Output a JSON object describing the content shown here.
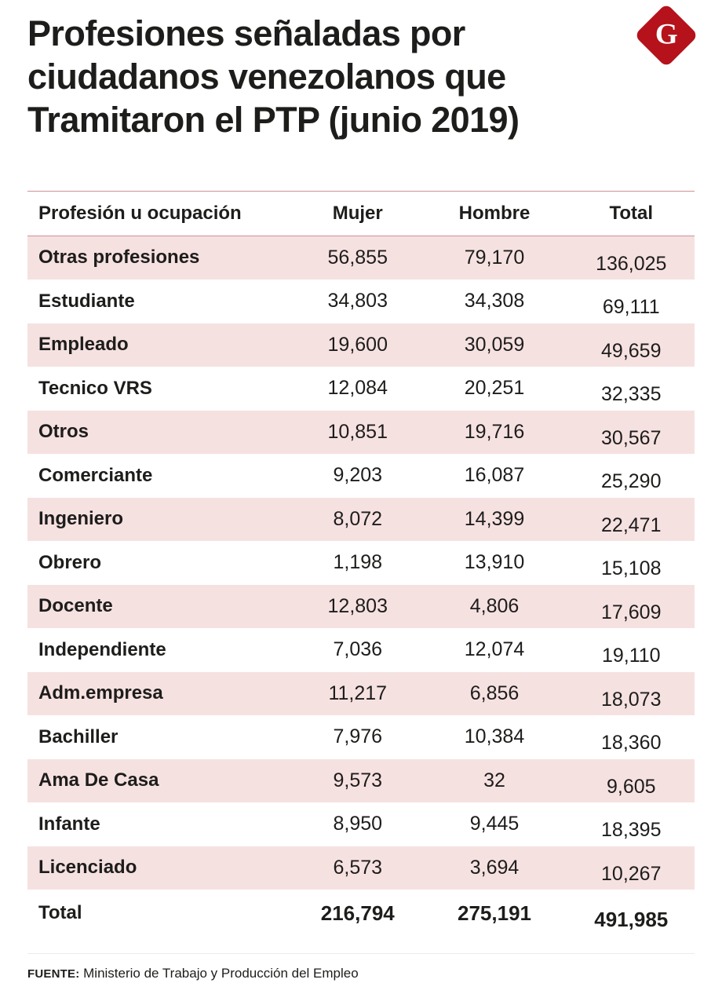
{
  "page": {
    "title_lines": [
      "Profesiones señaladas por",
      "ciudadanos venezolanos que",
      "Tramitaron el PTP (junio 2019)"
    ],
    "logo_letter": "G",
    "footer_label": "FUENTE:",
    "footer_text": " Ministerio de Trabajo y Producción del Empleo"
  },
  "colors": {
    "accent_red": "#b5121b",
    "row_pink": "#f6e1e1",
    "rule_red": "#cf9097",
    "text_dark": "#1d1d1b"
  },
  "chart_data": {
    "type": "table",
    "title": "Profesiones señaladas por ciudadanos venezolanos que Tramitaron el PTP (junio 2019)",
    "columns": [
      "Profesión u ocupación",
      "Mujer",
      "Hombre",
      "Total"
    ],
    "rows": [
      [
        "Otras profesiones",
        "56,855",
        "79,170",
        "136,025"
      ],
      [
        "Estudiante",
        "34,803",
        "34,308",
        "69,111"
      ],
      [
        "Empleado",
        "19,600",
        "30,059",
        "49,659"
      ],
      [
        "Tecnico VRS",
        "12,084",
        "20,251",
        "32,335"
      ],
      [
        "Otros",
        "10,851",
        "19,716",
        "30,567"
      ],
      [
        "Comerciante",
        "9,203",
        "16,087",
        "25,290"
      ],
      [
        "Ingeniero",
        "8,072",
        "14,399",
        "22,471"
      ],
      [
        "Obrero",
        "1,198",
        "13,910",
        "15,108"
      ],
      [
        "Docente",
        "12,803",
        "4,806",
        "17,609"
      ],
      [
        "Independiente",
        "7,036",
        "12,074",
        "19,110"
      ],
      [
        "Adm.empresa",
        "11,217",
        "6,856",
        "18,073"
      ],
      [
        "Bachiller",
        "7,976",
        "10,384",
        "18,360"
      ],
      [
        "Ama De Casa",
        "9,573",
        "32",
        "9,605"
      ],
      [
        "Infante",
        "8,950",
        "9,445",
        "18,395"
      ],
      [
        "Licenciado",
        "6,573",
        "3,694",
        "10,267"
      ]
    ],
    "total_row": [
      "Total",
      "216,794",
      "275,191",
      "491,985"
    ],
    "source": "FUENTE: Ministerio de Trabajo y Producción del Empleo",
    "layout": {
      "zebra": "pink-first",
      "value_alignment": "center"
    }
  }
}
